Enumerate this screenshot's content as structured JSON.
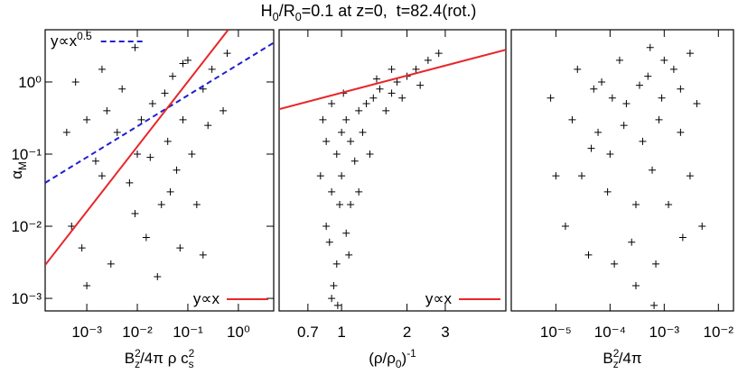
{
  "title": [
    {
      "text": "H"
    },
    {
      "text": "0",
      "shift": "sub"
    },
    {
      "text": "/R"
    },
    {
      "text": "0",
      "shift": "sub"
    },
    {
      "text": "=0.1 at z=0,  t=82.4(rot.)"
    }
  ],
  "chart_data": [
    {
      "type": "scatter",
      "xscale": "log",
      "yscale": "log",
      "marker_color": "#000000",
      "xlim": [
        0.00015,
        5
      ],
      "ylim": [
        0.00067,
        5.3
      ],
      "xticks": [
        {
          "value": 0.001,
          "label": "10⁻³"
        },
        {
          "value": 0.01,
          "label": "10⁻²"
        },
        {
          "value": 0.1,
          "label": "10⁻¹"
        },
        {
          "value": 1,
          "label": "10⁰"
        }
      ],
      "yticks": [
        {
          "value": 0.001,
          "label": "10⁻³"
        },
        {
          "value": 0.01,
          "label": "10⁻²"
        },
        {
          "value": 0.1,
          "label": "10⁻¹"
        },
        {
          "value": 1,
          "label": "10⁰"
        }
      ],
      "xlabel": [
        {
          "text": "B"
        },
        {
          "text": "2",
          "shift": "sup"
        },
        {
          "text": "z",
          "shift": "sub"
        },
        {
          "text": "/4π ρ c"
        },
        {
          "text": "2",
          "shift": "sup"
        },
        {
          "text": "s",
          "shift": "sub"
        }
      ],
      "ylabel": [
        {
          "text": "α"
        },
        {
          "text": "M",
          "shift": "sub"
        }
      ],
      "x": [
        0.001,
        0.002,
        0.005,
        0.01,
        0.02,
        0.03,
        0.05,
        0.08,
        0.1,
        0.2,
        0.3,
        0.5,
        0.0005,
        0.0008,
        0.003,
        0.004,
        0.007,
        0.015,
        0.04,
        0.06,
        0.12,
        0.15,
        0.0004,
        0.0006,
        0.002,
        0.009,
        0.025,
        0.07,
        0.2,
        0.001,
        0.012,
        0.018,
        0.035,
        0.009,
        0.25,
        0.0015,
        0.6,
        0.045,
        0.0025,
        0.08
      ],
      "y": [
        0.3,
        0.05,
        0.8,
        0.1,
        0.5,
        0.02,
        1.2,
        0.3,
        2,
        0.8,
        1.5,
        0.4,
        0.01,
        0.005,
        0.003,
        0.2,
        0.04,
        0.007,
        0.15,
        0.06,
        0.1,
        0.02,
        0.2,
        1,
        1.5,
        3,
        0.002,
        0.005,
        0.004,
        0.0015,
        0.3,
        0.09,
        0.7,
        0.015,
        0.25,
        0.08,
        2.5,
        0.03,
        0.4,
        1.8
      ],
      "lines": [
        {
          "label": [
            {
              "text": "y∝x"
            },
            {
              "text": "0.5",
              "shift": "sup"
            }
          ],
          "color": "#1f1fd0",
          "dashed": true,
          "legend": "upper left",
          "x": [
            0.00015,
            5
          ],
          "y": [
            0.04,
            3.5
          ]
        },
        {
          "label": [
            {
              "text": "y∝x"
            }
          ],
          "color": "#e8262a",
          "dashed": false,
          "legend": "lower right",
          "x": [
            0.00015,
            0.63
          ],
          "y": [
            0.0029,
            5.3
          ]
        }
      ]
    },
    {
      "type": "scatter",
      "xscale": "log",
      "yscale": "log",
      "marker_color": "#000000",
      "xlim": [
        0.516,
        5.7
      ],
      "ylim": [
        0.00067,
        5.3
      ],
      "xticks": [
        0.7,
        1,
        2,
        3
      ],
      "xlabel": [
        {
          "text": "(ρ/ρ"
        },
        {
          "text": "0",
          "shift": "sub"
        },
        {
          "text": ")"
        },
        {
          "text": "-1",
          "shift": "sup"
        }
      ],
      "x": [
        0.9,
        0.95,
        0.85,
        0.9,
        0.8,
        0.95,
        1,
        1.05,
        1.1,
        1.2,
        1.3,
        1.4,
        1.5,
        1.7,
        1.8,
        2,
        2.2,
        2.5,
        2.8,
        1,
        1.1,
        0.88,
        1.05,
        0.92,
        1.15,
        1.25,
        0.85,
        0.82,
        0.9,
        1.6,
        1.9,
        1.35,
        1.2,
        0.98,
        1.02,
        1.45,
        2.3,
        1.08,
        0.96,
        1.7
      ],
      "y": [
        0.001,
        0.003,
        0.01,
        0.03,
        0.05,
        0.1,
        0.2,
        0.3,
        0.15,
        0.4,
        0.5,
        0.6,
        0.8,
        0.7,
        1,
        1.2,
        1.5,
        2,
        2.5,
        0.05,
        0.02,
        0.006,
        0.008,
        0.0015,
        0.08,
        0.2,
        0.15,
        0.3,
        0.5,
        0.4,
        0.6,
        0.1,
        0.03,
        0.02,
        0.7,
        1.1,
        0.9,
        0.004,
        0.0008,
        1.5
      ],
      "lines": [
        {
          "label": [
            {
              "text": "y∝x"
            }
          ],
          "color": "#e8262a",
          "dashed": false,
          "legend": "lower right",
          "x": [
            0.516,
            5.7
          ],
          "y": [
            0.42,
            2.8
          ]
        }
      ]
    },
    {
      "type": "scatter",
      "xscale": "log",
      "yscale": "log",
      "marker_color": "#000000",
      "xlim": [
        1.5e-06,
        0.019
      ],
      "ylim": [
        0.00067,
        5.3
      ],
      "xticks": [
        {
          "value": 1e-05,
          "label": "10⁻⁵"
        },
        {
          "value": 0.0001,
          "label": "10⁻⁴"
        },
        {
          "value": 0.001,
          "label": "10⁻³"
        },
        {
          "value": 0.01,
          "label": "10⁻²"
        }
      ],
      "xlabel": [
        {
          "text": "B"
        },
        {
          "text": "2",
          "shift": "sup"
        },
        {
          "text": "z",
          "shift": "sub"
        },
        {
          "text": "/4π"
        }
      ],
      "x": [
        2e-05,
        3e-05,
        5e-05,
        0.0001,
        0.0002,
        0.0003,
        0.0005,
        0.0008,
        0.001,
        0.002,
        0.003,
        1.5e-05,
        4e-05,
        6e-05,
        7e-05,
        0.00015,
        0.00025,
        0.0004,
        0.0006,
        0.0012,
        0.002,
        1e-05,
        8e-06,
        0.00012,
        0.0003,
        0.0007,
        0.0009,
        0.0015,
        0.004,
        0.005,
        2.5e-05,
        9e-05,
        0.00035,
        0.00018,
        0.00055,
        0.0022,
        0.00011,
        4.5e-05,
        0.00065,
        0.003
      ],
      "y": [
        0.3,
        0.05,
        0.8,
        0.1,
        0.5,
        0.02,
        1.2,
        0.3,
        2,
        0.8,
        0.05,
        0.01,
        0.004,
        0.2,
        1,
        2,
        0.006,
        0.15,
        0.06,
        0.02,
        0.2,
        0.05,
        0.6,
        0.003,
        0.0015,
        0.003,
        0.6,
        1.5,
        0.5,
        0.01,
        1.5,
        0.03,
        0.9,
        0.25,
        3,
        0.007,
        0.6,
        0.12,
        0.0008,
        2.5
      ],
      "lines": []
    }
  ]
}
